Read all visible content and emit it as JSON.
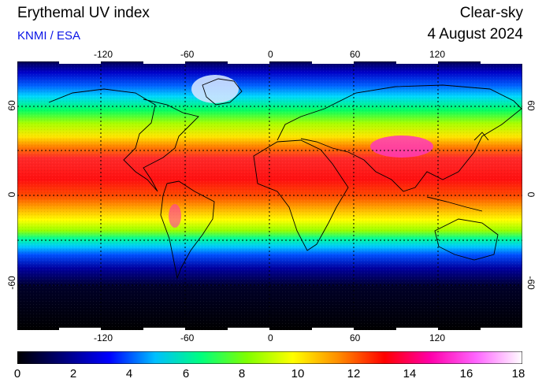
{
  "header": {
    "title": "Erythemal UV index",
    "credit": "KNMI / ESA",
    "mode": "Clear-sky",
    "date": "4 August 2024"
  },
  "map": {
    "projection": "equirectangular",
    "lon_range": [
      -180,
      180
    ],
    "lat_range": [
      -90,
      90
    ],
    "lon_ticks": [
      "-120",
      "-60",
      "0",
      "60",
      "120"
    ],
    "lat_ticks": [
      "60",
      "0",
      "-60"
    ],
    "gridlines": "dotted",
    "coastlines": true
  },
  "colorbar": {
    "min": 0,
    "max": 18,
    "labels": [
      "0",
      "2",
      "4",
      "6",
      "8",
      "10",
      "12",
      "14",
      "16",
      "18"
    ],
    "colors": [
      "#000000",
      "#00007a",
      "#0000ff",
      "#00bfff",
      "#00ff7f",
      "#7fff00",
      "#ffff00",
      "#ff8c00",
      "#ff0000",
      "#ff00aa",
      "#ff66ff",
      "#ffffff"
    ]
  }
}
